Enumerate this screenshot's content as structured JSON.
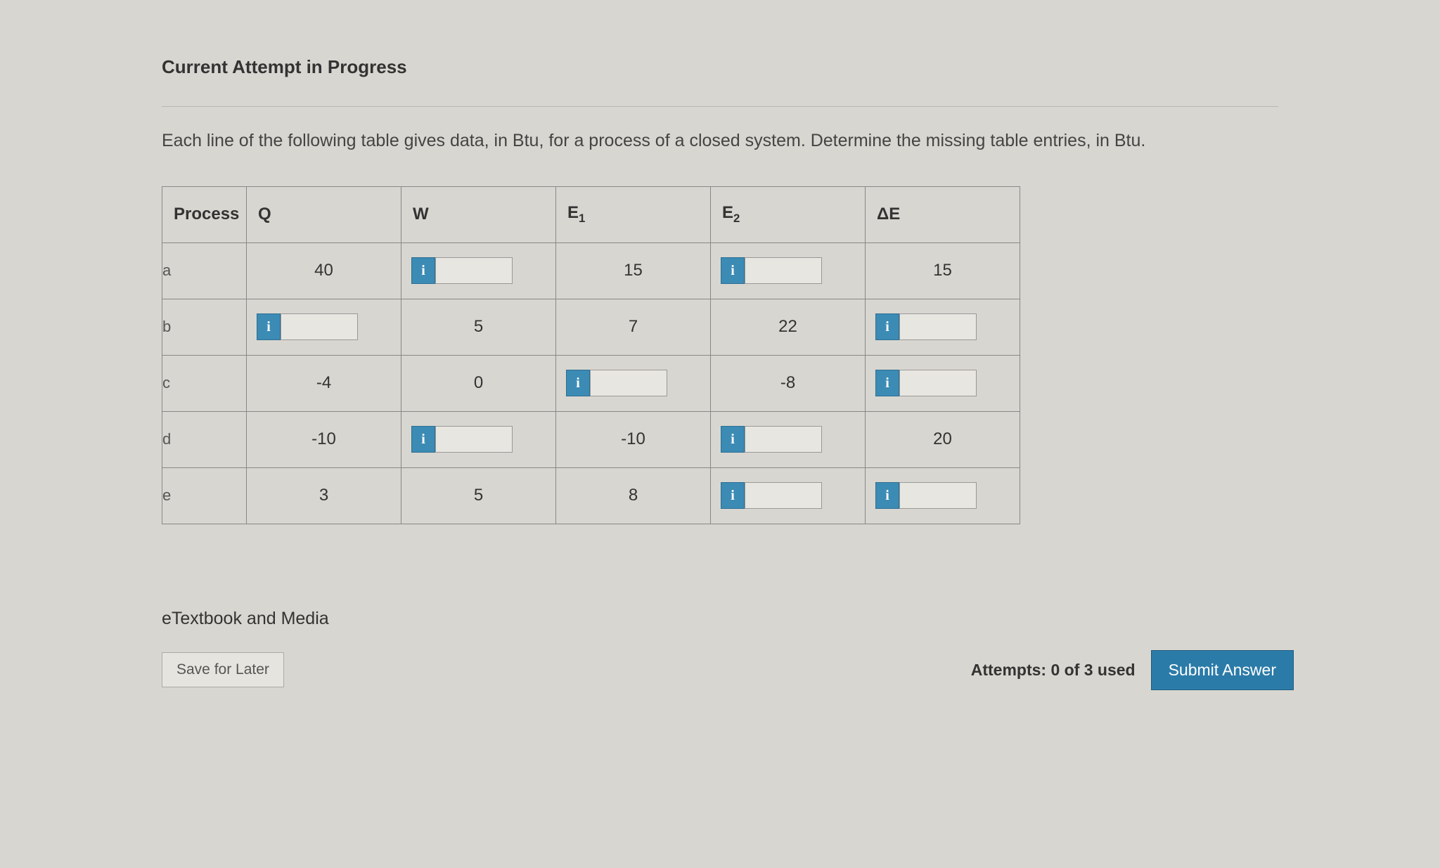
{
  "heading": "Current Attempt in Progress",
  "prompt": "Each line of the following table gives data, in Btu, for a process of a closed system. Determine the missing table entries, in Btu.",
  "table": {
    "headers": {
      "process": "Process",
      "q": "Q",
      "w": "W",
      "e1_prefix": "E",
      "e1_sub": "1",
      "e2_prefix": "E",
      "e2_sub": "2",
      "de": "ΔE"
    },
    "rows": [
      {
        "label": "a",
        "q": {
          "type": "static",
          "value": "40"
        },
        "w": {
          "type": "input",
          "value": ""
        },
        "e1": {
          "type": "static",
          "value": "15"
        },
        "e2": {
          "type": "input",
          "value": ""
        },
        "de": {
          "type": "static",
          "value": "15"
        }
      },
      {
        "label": "b",
        "q": {
          "type": "input",
          "value": ""
        },
        "w": {
          "type": "static",
          "value": "5"
        },
        "e1": {
          "type": "static",
          "value": "7"
        },
        "e2": {
          "type": "static",
          "value": "22"
        },
        "de": {
          "type": "input",
          "value": ""
        }
      },
      {
        "label": "c",
        "q": {
          "type": "static",
          "value": "-4"
        },
        "w": {
          "type": "static",
          "value": "0"
        },
        "e1": {
          "type": "input",
          "value": ""
        },
        "e2": {
          "type": "static",
          "value": "-8"
        },
        "de": {
          "type": "input",
          "value": ""
        }
      },
      {
        "label": "d",
        "q": {
          "type": "static",
          "value": "-10"
        },
        "w": {
          "type": "input",
          "value": ""
        },
        "e1": {
          "type": "static",
          "value": "-10"
        },
        "e2": {
          "type": "input",
          "value": ""
        },
        "de": {
          "type": "static",
          "value": "20"
        }
      },
      {
        "label": "e",
        "q": {
          "type": "static",
          "value": "3"
        },
        "w": {
          "type": "static",
          "value": "5"
        },
        "e1": {
          "type": "static",
          "value": "8"
        },
        "e2": {
          "type": "input",
          "value": ""
        },
        "de": {
          "type": "input",
          "value": ""
        }
      }
    ]
  },
  "info_icon_label": "i",
  "etextbook_label": "eTextbook and Media",
  "save_label": "Save for Later",
  "attempts_label": "Attempts: 0 of 3 used",
  "submit_label": "Submit Answer",
  "colors": {
    "background": "#d8d6d0",
    "info_button": "#3b8bb5",
    "submit_button": "#2b7ba8",
    "border": "#888888",
    "text": "#333333"
  }
}
